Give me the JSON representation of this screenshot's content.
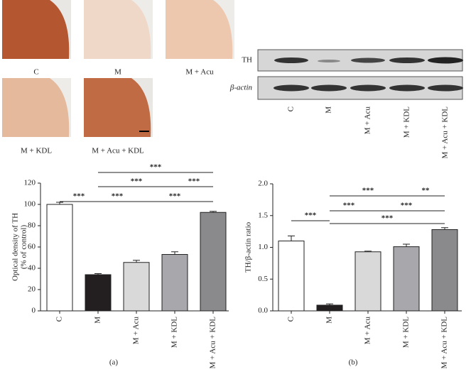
{
  "histology": {
    "labels": [
      "C",
      "M",
      "M + Acu",
      "M + KDL",
      "M + Acu + KDL"
    ]
  },
  "blot": {
    "rows": [
      "TH",
      "β-actin"
    ],
    "lanes": [
      "C",
      "M",
      "M + Acu",
      "M + KDL",
      "M + Acu + KDL"
    ]
  },
  "chart_data": [
    {
      "type": "bar",
      "panel": "(a)",
      "y_label": [
        "Optical density of TH",
        "(% of control)"
      ],
      "categories": [
        "C",
        "M",
        "M + Acu",
        "M + KDL",
        "M + Acu + KDL"
      ],
      "values": [
        100,
        34,
        45.5,
        53,
        92.5
      ],
      "errors": [
        2,
        1,
        2,
        2.5,
        1
      ],
      "colors": [
        "#ffffff",
        "#231f20",
        "#d9d9d9",
        "#a7a7ac",
        "#8a8a8c"
      ],
      "ylim": [
        0,
        120
      ],
      "yticks": [
        0,
        20,
        40,
        60,
        80,
        100,
        120
      ],
      "annotations": [
        "***",
        "***",
        "***",
        "***",
        "***",
        "***"
      ]
    },
    {
      "type": "bar",
      "panel": "(b)",
      "y_label": [
        "TH/β-actin ratio"
      ],
      "categories": [
        "C",
        "M",
        "M + Acu",
        "M + KDL",
        "M + Acu + KDL"
      ],
      "values": [
        1.1,
        0.09,
        0.93,
        1.01,
        1.28
      ],
      "errors": [
        0.08,
        0.02,
        0.01,
        0.04,
        0.03
      ],
      "colors": [
        "#ffffff",
        "#231f20",
        "#d9d9d9",
        "#a7a7ac",
        "#8a8a8c"
      ],
      "ylim": [
        0,
        2.0
      ],
      "yticks": [
        {
          "value": 0,
          "label": "0.0"
        },
        0.5,
        {
          "value": 1,
          "label": "1.0"
        },
        1.5,
        {
          "value": 2,
          "label": "2.0"
        }
      ],
      "annotations": [
        "***",
        "**",
        "***",
        "***",
        "***",
        "***"
      ]
    }
  ]
}
